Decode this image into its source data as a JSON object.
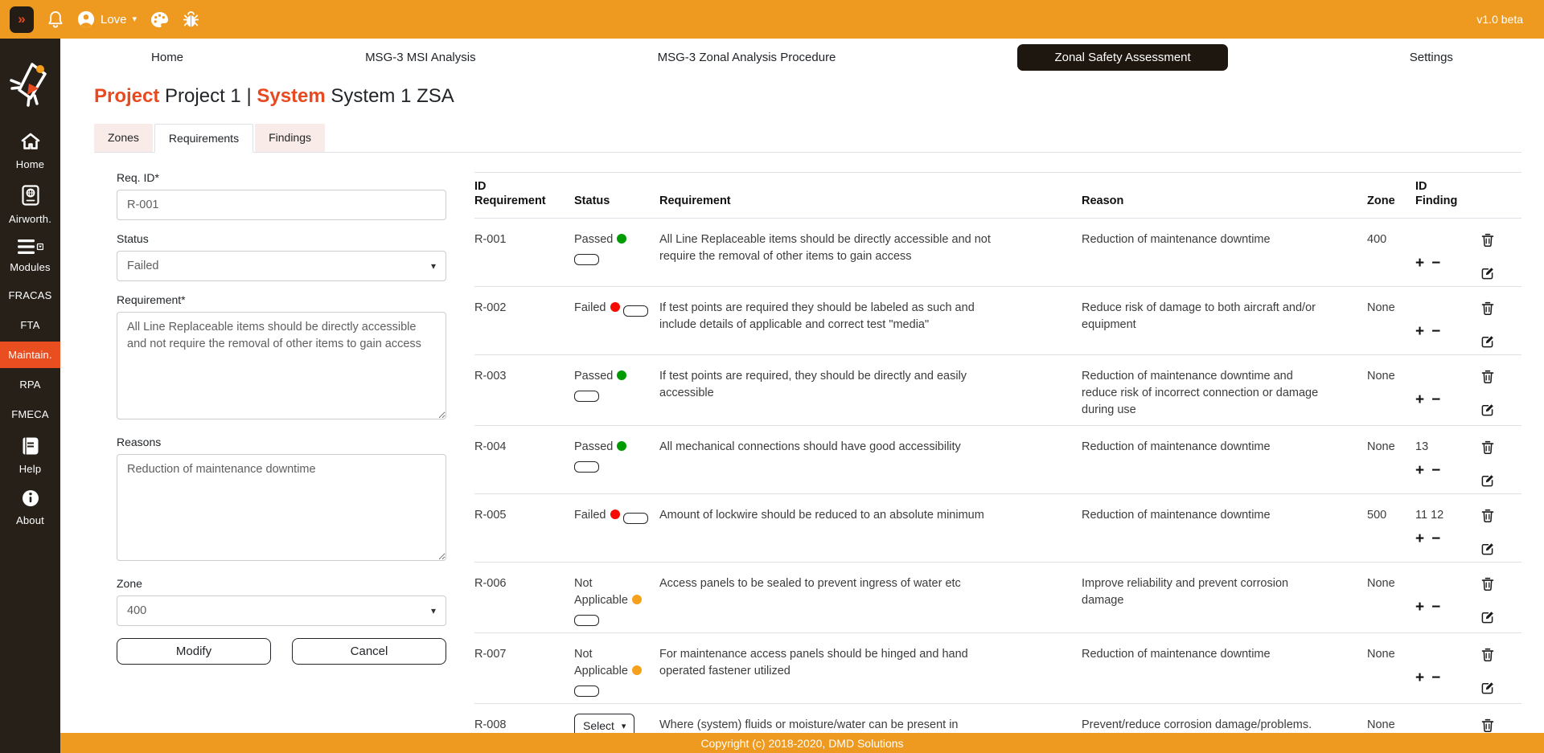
{
  "topbar": {
    "user_name": "Love",
    "version": "v1.0 beta"
  },
  "icons": {
    "expand": "»",
    "caret_down": "▾",
    "plus": "+",
    "minus": "−"
  },
  "sidebar": {
    "items": [
      {
        "label": "Home",
        "icon": "home-icon"
      },
      {
        "label": "Airworth.",
        "icon": "passport-icon"
      },
      {
        "label": "Modules",
        "icon": "modules-icon"
      },
      {
        "label": "FRACAS"
      },
      {
        "label": "FTA"
      },
      {
        "label": "Maintain.",
        "active": true
      },
      {
        "label": "RPA"
      },
      {
        "label": "FMECA"
      },
      {
        "label": "Help",
        "icon": "book-icon"
      },
      {
        "label": "About",
        "icon": "info-icon"
      }
    ]
  },
  "nav": {
    "items": [
      {
        "label": "Home"
      },
      {
        "label": "MSG-3 MSI Analysis"
      },
      {
        "label": "MSG-3 Zonal Analysis Procedure"
      },
      {
        "label": "Zonal Safety Assessment",
        "active": true
      },
      {
        "label": "Settings"
      }
    ]
  },
  "header": {
    "project_label": "Project",
    "project_value": "Project 1",
    "separator": "|",
    "system_label": "System",
    "system_value": "System 1 ZSA"
  },
  "tabs": [
    {
      "label": "Zones"
    },
    {
      "label": "Requirements",
      "active": true
    },
    {
      "label": "Findings"
    }
  ],
  "form": {
    "req_id_label": "Req. ID*",
    "req_id_value": "R-001",
    "status_label": "Status",
    "status_value": "Failed",
    "requirement_label": "Requirement*",
    "requirement_value": "All Line Replaceable items should be directly accessible and not require the removal of other items to gain access",
    "reasons_label": "Reasons",
    "reasons_value": "Reduction of maintenance downtime",
    "zone_label": "Zone",
    "zone_value": "400",
    "modify_label": "Modify",
    "cancel_label": "Cancel"
  },
  "table": {
    "headers": [
      "ID\nRequirement",
      "Status",
      "Requirement",
      "Reason",
      "Zone",
      "ID\nFinding",
      ""
    ],
    "select_label": "Select",
    "rows": [
      {
        "id": "R-001",
        "status": "Passed",
        "dot": "green",
        "requirement": "All Line Replaceable items should be directly accessible and not require the removal of other items to gain access",
        "reason": "Reduction of maintenance downtime",
        "zone": "400",
        "findings": ""
      },
      {
        "id": "R-002",
        "status": "Failed",
        "dot": "red",
        "requirement": "If test points are required they should be labeled as such and include details of applicable and correct test \"media\"",
        "reason": "Reduce risk of damage to both aircraft and/or equipment",
        "zone": "None",
        "findings": ""
      },
      {
        "id": "R-003",
        "status": "Passed",
        "dot": "green",
        "requirement": "If test points are required, they should be directly and easily accessible",
        "reason": "Reduction of maintenance downtime and reduce risk of incorrect connection or damage during use",
        "zone": "None",
        "findings": ""
      },
      {
        "id": "R-004",
        "status": "Passed",
        "dot": "green",
        "requirement": "All mechanical connections should have good accessibility",
        "reason": "Reduction of maintenance downtime",
        "zone": "None",
        "findings": "13"
      },
      {
        "id": "R-005",
        "status": "Failed",
        "dot": "red",
        "requirement": "Amount of lockwire should be reduced to an absolute minimum",
        "reason": "Reduction of maintenance downtime",
        "zone": "500",
        "findings": "11 12"
      },
      {
        "id": "R-006",
        "status": "Not Applicable",
        "dot": "amber",
        "requirement": "Access panels to be sealed to prevent ingress of water etc",
        "reason": "Improve reliability and prevent corrosion damage",
        "zone": "None",
        "findings": ""
      },
      {
        "id": "R-007",
        "status": "Not Applicable",
        "dot": "amber",
        "requirement": "For maintenance access panels should be hinged and hand operated fastener utilized",
        "reason": "Reduction of maintenance downtime",
        "zone": "None",
        "findings": ""
      },
      {
        "id": "R-008",
        "status": "Select",
        "status_type": "select",
        "requirement": "Where (system) fluids or moisture/water can be present in bays/zones then means of drainage to be provided",
        "reason": "Prevent/reduce corrosion damage/problems. Also reduce risk of fire if fluids are flammable",
        "zone": "None",
        "findings": ""
      }
    ]
  },
  "footer": {
    "copyright": "Copyright (c) 2018-2020, DMD Solutions"
  },
  "colors": {
    "bar_orange": "#EE9A20",
    "accent_vermilion": "#E8491F",
    "sidebar_bg": "#262019",
    "active_pill": "#1E1710",
    "tab_inactive": "#F9EBE7",
    "status_passed": "#009B00",
    "status_failed": "#F60B00",
    "status_not_applicable": "#F5A11C"
  }
}
